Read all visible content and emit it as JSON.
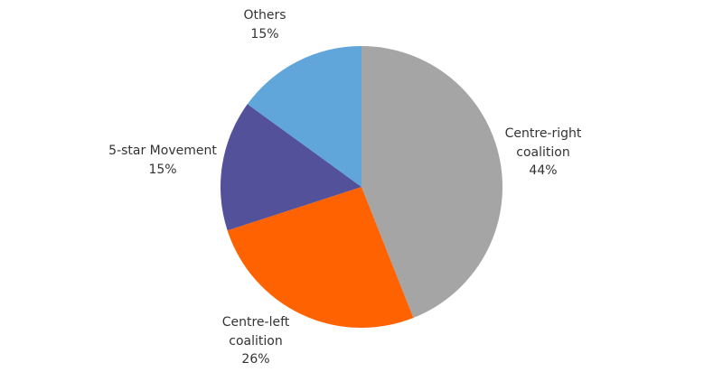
{
  "chart_data": {
    "type": "pie",
    "title": "",
    "start_angle": "12 o'clock",
    "direction": "clockwise",
    "slices": [
      {
        "label": [
          "Centre-right",
          "coalition"
        ],
        "value": 44,
        "value_label": "44%",
        "color": "#a5a5a5"
      },
      {
        "label": [
          "Centre-left",
          "coalition"
        ],
        "value": 26,
        "value_label": "26%",
        "color": "#ff6200"
      },
      {
        "label": [
          "5-star Movement"
        ],
        "value": 15,
        "value_label": "15%",
        "color": "#525199"
      },
      {
        "label": [
          "Others"
        ],
        "value": 15,
        "value_label": "15%",
        "color": "#60a6da"
      }
    ]
  }
}
